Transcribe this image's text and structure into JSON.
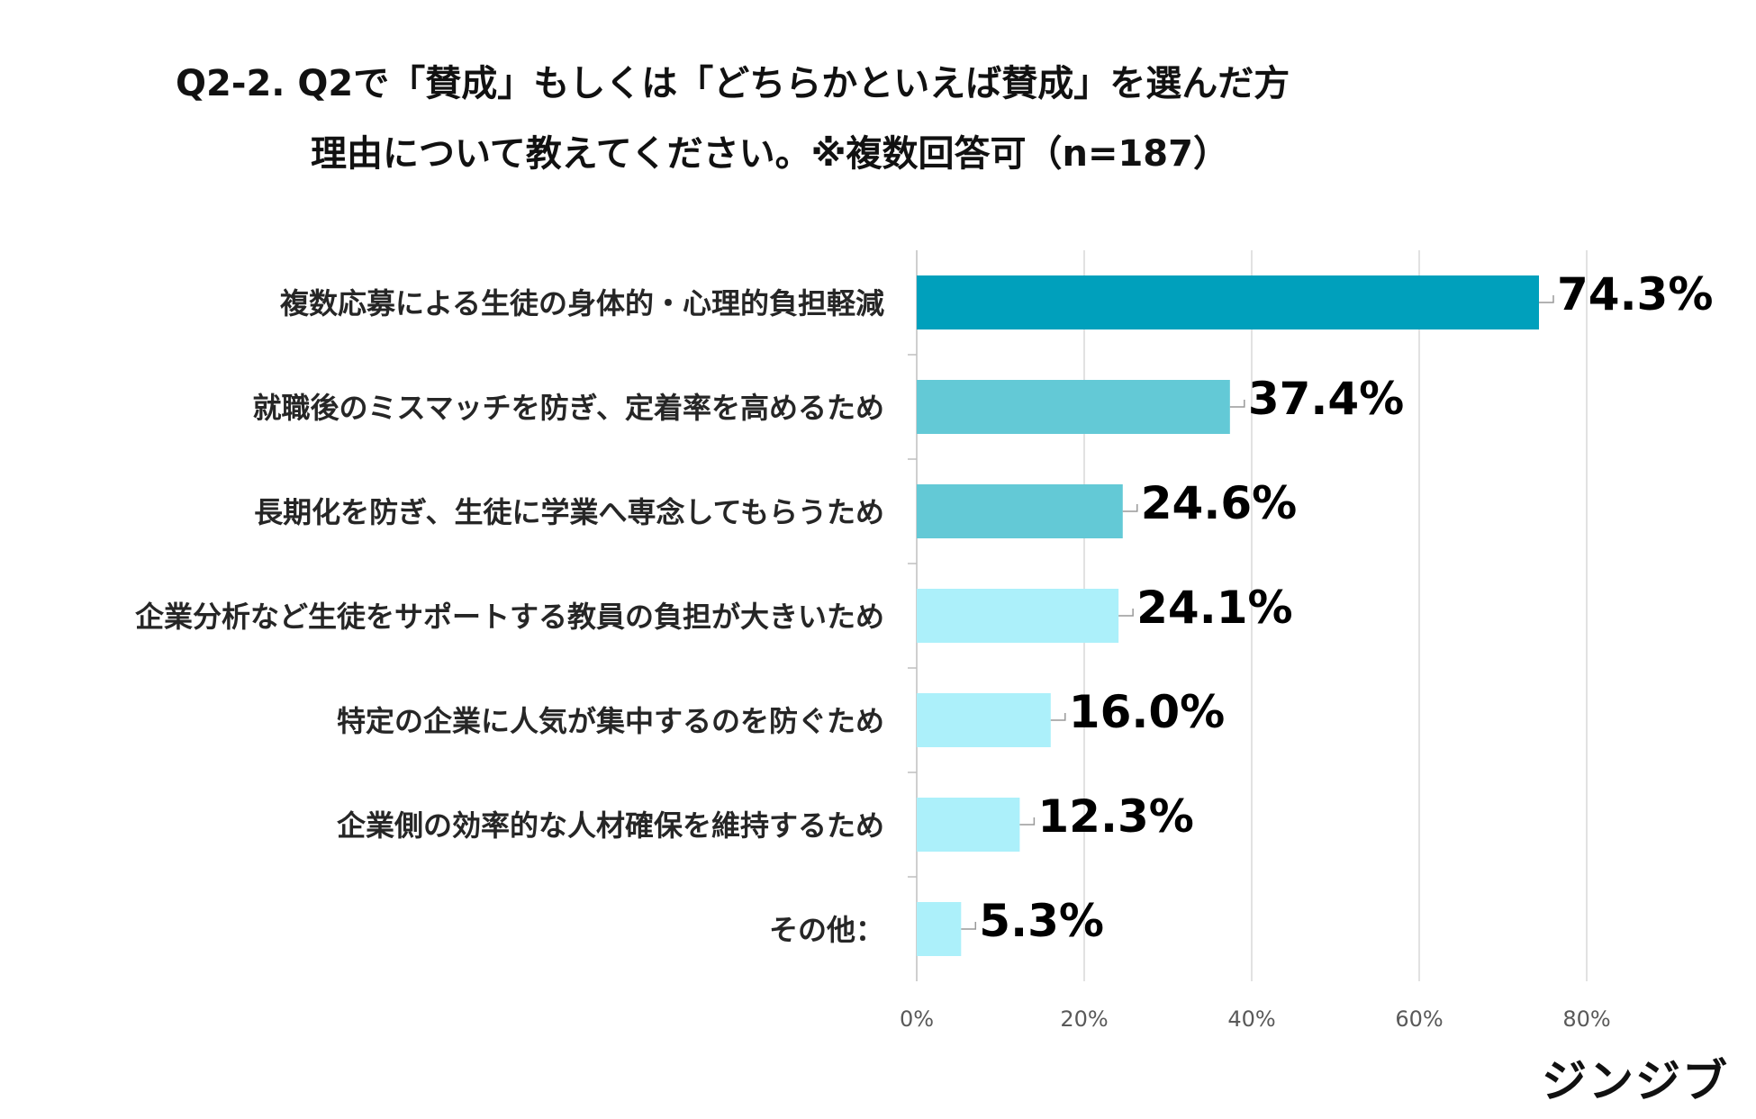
{
  "title_line1": "Q2-2. Q2で「賛成」もしくは「どちらかといえば賛成」を選んだ方",
  "title_line2": "理由について教えてください。※複数回答可（n=187）",
  "logo": "ジンジブ",
  "chart_data": {
    "type": "bar",
    "orientation": "horizontal",
    "title": "Q2-2. Q2で「賛成」もしくは「どちらかといえば賛成」を選んだ方 理由について教えてください。※複数回答可（n=187）",
    "categories": [
      "複数応募による生徒の身体的・心理的負担軽減",
      "就職後のミスマッチを防ぎ、定着率を高めるため",
      "長期化を防ぎ、生徒に学業へ専念してもらうため",
      "企業分析など生徒をサポートする教員の負担が大きいため",
      "特定の企業に人気が集中するのを防ぐため",
      "企業側の効率的な人材確保を維持するため",
      "その他："
    ],
    "values": [
      74.3,
      37.4,
      24.6,
      24.1,
      16.0,
      12.3,
      5.3
    ],
    "value_labels": [
      "74.3%",
      "37.4%",
      "24.6%",
      "24.1%",
      "16.0%",
      "12.3%",
      "5.3%"
    ],
    "bar_colors": [
      "#00A0BC",
      "#63C9D6",
      "#63C9D6",
      "#ACF0FA",
      "#ACF0FA",
      "#ACF0FA",
      "#ACF0FA"
    ],
    "xticks": [
      "0%",
      "20%",
      "40%",
      "60%",
      "80%"
    ],
    "xtick_values": [
      0,
      20,
      40,
      60,
      80
    ],
    "xlim": [
      0,
      100
    ],
    "grid": true,
    "xlabel": "",
    "ylabel": ""
  }
}
